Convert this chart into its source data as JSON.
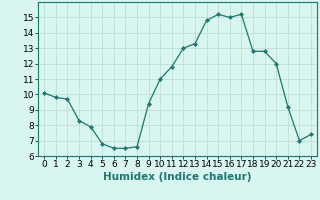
{
  "x": [
    0,
    1,
    2,
    3,
    4,
    5,
    6,
    7,
    8,
    9,
    10,
    11,
    12,
    13,
    14,
    15,
    16,
    17,
    18,
    19,
    20,
    21,
    22,
    23
  ],
  "y": [
    10.1,
    9.8,
    9.7,
    8.3,
    7.9,
    6.8,
    6.5,
    6.5,
    6.6,
    9.4,
    11.0,
    11.8,
    13.0,
    13.3,
    14.8,
    15.2,
    15.0,
    15.2,
    12.8,
    12.8,
    12.0,
    9.2,
    7.0,
    7.4
  ],
  "xlabel": "Humidex (Indice chaleur)",
  "xlim": [
    -0.5,
    23.5
  ],
  "ylim": [
    6,
    16.0
  ],
  "yticks": [
    6,
    7,
    8,
    9,
    10,
    11,
    12,
    13,
    14,
    15
  ],
  "xticks": [
    0,
    1,
    2,
    3,
    4,
    5,
    6,
    7,
    8,
    9,
    10,
    11,
    12,
    13,
    14,
    15,
    16,
    17,
    18,
    19,
    20,
    21,
    22,
    23
  ],
  "line_color": "#1a7a6e",
  "marker": "D",
  "marker_size": 2.0,
  "bg_color": "#d8f5f0",
  "grid_major_color": "#c0ddd9",
  "grid_minor_color": "#dcecea",
  "xlabel_fontsize": 7.5,
  "tick_fontsize": 6.5
}
